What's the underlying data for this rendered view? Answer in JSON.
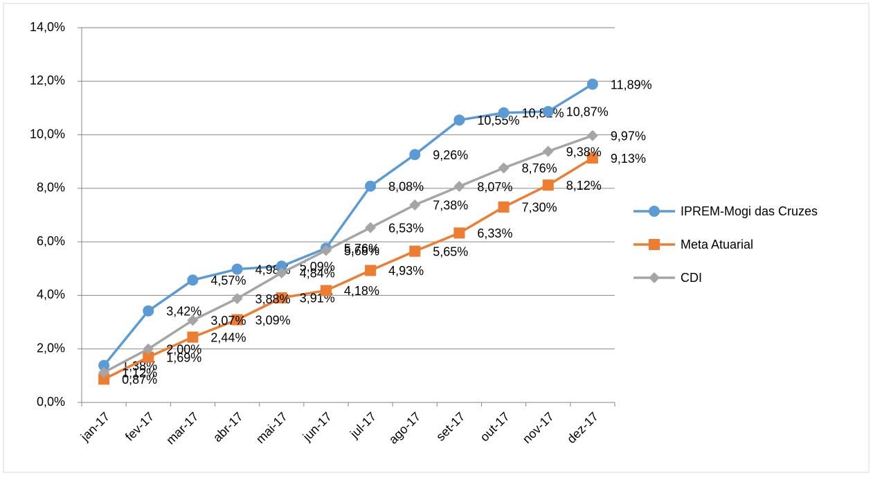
{
  "chart_data": {
    "type": "line",
    "categories": [
      "jan-17",
      "fev-17",
      "mar-17",
      "abr-17",
      "mai-17",
      "jun-17",
      "jul-17",
      "ago-17",
      "set-17",
      "out-17",
      "nov-17",
      "dez-17"
    ],
    "series": [
      {
        "name": "IPREM-Mogi das Cruzes",
        "color": "#5b9bd5",
        "marker": "circle",
        "values": [
          1.38,
          3.42,
          4.57,
          4.98,
          5.09,
          5.76,
          8.08,
          9.26,
          10.55,
          10.82,
          10.87,
          11.89
        ],
        "value_labels": [
          "1,38%",
          "3,42%",
          "4,57%",
          "4,98%",
          "5,09%",
          "5,76%",
          "8,08%",
          "9,26%",
          "10,55%",
          "10,82%",
          "10,87%",
          "11,89%"
        ]
      },
      {
        "name": "Meta Atuarial",
        "color": "#ed7d31",
        "marker": "square",
        "values": [
          0.87,
          1.69,
          2.44,
          3.09,
          3.91,
          4.18,
          4.93,
          5.65,
          6.33,
          7.3,
          8.12,
          9.13
        ],
        "value_labels": [
          "0,87%",
          "1,69%",
          "2,44%",
          "3,09%",
          "3,91%",
          "4,18%",
          "4,93%",
          "5,65%",
          "6,33%",
          "7,30%",
          "8,12%",
          "9,13%"
        ]
      },
      {
        "name": "CDI",
        "color": "#a5a5a5",
        "marker": "diamond",
        "values": [
          1.12,
          2.0,
          3.07,
          3.88,
          4.84,
          5.68,
          6.53,
          7.38,
          8.07,
          8.76,
          9.38,
          9.97
        ],
        "value_labels": [
          "1,12%",
          "2,00%",
          "3,07%",
          "3,88%",
          "4,84%",
          "5,68%",
          "6,53%",
          "7,38%",
          "8,07%",
          "8,76%",
          "9,38%",
          "9,97%"
        ]
      }
    ],
    "ylim": [
      0,
      14
    ],
    "yticks": [
      {
        "value": 0,
        "label": "0,0%"
      },
      {
        "value": 2,
        "label": "2,0%"
      },
      {
        "value": 4,
        "label": "4,0%"
      },
      {
        "value": 6,
        "label": "6,0%"
      },
      {
        "value": 8,
        "label": "8,0%"
      },
      {
        "value": 10,
        "label": "10,0%"
      },
      {
        "value": 12,
        "label": "12,0%"
      },
      {
        "value": 14,
        "label": "14,0%"
      }
    ],
    "grid": true,
    "legend": "right"
  }
}
